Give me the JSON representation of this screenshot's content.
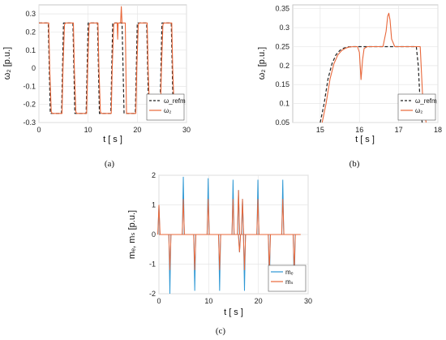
{
  "colors": {
    "ref": "#222222",
    "signal": "#E8673A",
    "me": "#2C97D4",
    "ms": "#E8673A",
    "grid": "#e6e6e6",
    "frame": "#b8b8b8"
  },
  "chart_data": [
    {
      "id": "a",
      "type": "line",
      "caption": "(a)",
      "xlabel": "t [ s ]",
      "ylabel": "ω₂ [p.u.]",
      "xlim": [
        0,
        30
      ],
      "ylim": [
        -0.3,
        0.35
      ],
      "xticks": [
        0,
        10,
        20,
        30
      ],
      "yticks": [
        -0.3,
        -0.2,
        -0.1,
        0,
        0.1,
        0.2,
        0.3
      ],
      "grid": true,
      "legend_position": "bottom-right",
      "series": [
        {
          "name": "ω_refm",
          "style": "dashed",
          "x": [
            0,
            1.9,
            2.3,
            4.6,
            5.0,
            6.9,
            7.3,
            9.6,
            10.0,
            11.9,
            12.3,
            14.6,
            15.0,
            16.9,
            17.3,
            19.6,
            20.0,
            21.9,
            22.3,
            24.6,
            25.0,
            26.9,
            27.3,
            28.0
          ],
          "y": [
            0.25,
            0.25,
            -0.25,
            -0.25,
            0.25,
            0.25,
            -0.25,
            -0.25,
            0.25,
            0.25,
            -0.25,
            -0.25,
            0.25,
            0.25,
            -0.25,
            -0.25,
            0.25,
            0.25,
            -0.25,
            -0.25,
            0.25,
            0.25,
            -0.25,
            -0.25
          ]
        },
        {
          "name": "ω₂",
          "style": "solid",
          "x": [
            0,
            2.0,
            2.2,
            2.5,
            2.7,
            4.7,
            4.9,
            5.2,
            5.4,
            7.0,
            7.2,
            7.5,
            7.7,
            9.7,
            9.9,
            10.2,
            10.4,
            12.0,
            12.2,
            12.5,
            12.7,
            14.7,
            14.9,
            15.2,
            15.4,
            15.9,
            16.0,
            16.1,
            16.3,
            16.6,
            16.75,
            16.9,
            17.05,
            17.25,
            17.55,
            17.8,
            19.7,
            19.9,
            20.2,
            20.4,
            22.0,
            22.2,
            22.5,
            22.7,
            24.7,
            24.9,
            25.2,
            25.4,
            27.0,
            27.2,
            27.5,
            27.7,
            28.0
          ],
          "y": [
            0.25,
            0.25,
            0.0,
            -0.24,
            -0.25,
            -0.25,
            0.0,
            0.24,
            0.25,
            0.25,
            0.0,
            -0.24,
            -0.25,
            -0.25,
            0.0,
            0.24,
            0.25,
            0.25,
            0.0,
            -0.24,
            -0.25,
            -0.25,
            0.0,
            0.24,
            0.25,
            0.25,
            0.16,
            0.25,
            0.25,
            0.25,
            0.34,
            0.25,
            0.25,
            0.25,
            0.25,
            -0.25,
            -0.25,
            0.0,
            0.24,
            0.25,
            0.25,
            0.0,
            -0.24,
            -0.25,
            -0.25,
            0.0,
            0.24,
            0.25,
            0.25,
            0.0,
            -0.24,
            -0.25,
            -0.25
          ]
        }
      ]
    },
    {
      "id": "b",
      "type": "line",
      "caption": "(b)",
      "xlabel": "t [ s ]",
      "ylabel": "ω₂ [p.u.]",
      "xlim": [
        14.3,
        18
      ],
      "ylim": [
        0.05,
        0.36
      ],
      "xticks": [
        15,
        16,
        17,
        18
      ],
      "yticks": [
        0.05,
        0.1,
        0.15,
        0.2,
        0.25,
        0.3,
        0.35
      ],
      "grid": true,
      "legend_position": "bottom-right",
      "series": [
        {
          "name": "ω_refm",
          "style": "dashed",
          "x": [
            15.0,
            15.1,
            15.2,
            15.3,
            15.4,
            15.5,
            15.6,
            15.7,
            15.8,
            16.0,
            17.0,
            17.45,
            17.5,
            17.55,
            17.6
          ],
          "y": [
            0.0,
            0.1,
            0.165,
            0.205,
            0.228,
            0.24,
            0.246,
            0.249,
            0.25,
            0.25,
            0.25,
            0.25,
            0.2,
            0.1,
            0.0
          ]
        },
        {
          "name": "ω₂",
          "style": "solid",
          "x": [
            15.05,
            15.15,
            15.25,
            15.35,
            15.45,
            15.55,
            15.65,
            15.75,
            15.85,
            15.95,
            16.0,
            16.04,
            16.08,
            16.12,
            16.2,
            16.3,
            16.45,
            16.6,
            16.68,
            16.72,
            16.75,
            16.78,
            16.82,
            16.9,
            17.0,
            17.2,
            17.55,
            17.62,
            17.7
          ],
          "y": [
            0.0,
            0.1,
            0.165,
            0.205,
            0.228,
            0.24,
            0.246,
            0.249,
            0.25,
            0.25,
            0.235,
            0.163,
            0.215,
            0.245,
            0.25,
            0.25,
            0.25,
            0.25,
            0.29,
            0.33,
            0.338,
            0.32,
            0.27,
            0.25,
            0.25,
            0.25,
            0.25,
            0.1,
            0.0
          ]
        }
      ]
    },
    {
      "id": "c",
      "type": "line",
      "caption": "(c)",
      "xlabel": "t [ s ]",
      "ylabel": "mₑ, mₛ [p.u.]",
      "xlim": [
        0,
        30
      ],
      "ylim": [
        -2,
        2
      ],
      "xticks": [
        0,
        10,
        20,
        30
      ],
      "yticks": [
        -2,
        -1,
        0,
        1,
        2
      ],
      "grid": true,
      "legend_position": "bottom-right",
      "spikes": [
        {
          "t": 0.0,
          "me": 1.0,
          "ms": 1.0
        },
        {
          "t": 2.2,
          "me": -2.0,
          "ms": -1.2
        },
        {
          "t": 4.9,
          "me": 1.95,
          "ms": 1.2
        },
        {
          "t": 7.2,
          "me": -1.9,
          "ms": -1.2
        },
        {
          "t": 9.9,
          "me": 1.9,
          "ms": 1.2
        },
        {
          "t": 12.2,
          "me": -1.9,
          "ms": -1.2
        },
        {
          "t": 14.9,
          "me": 1.85,
          "ms": 1.2
        },
        {
          "t": 16.0,
          "me": 1.5,
          "ms": 1.5
        },
        {
          "t": 16.2,
          "me": -0.6,
          "ms": -0.6
        },
        {
          "t": 16.8,
          "me": 1.2,
          "ms": 1.2
        },
        {
          "t": 17.2,
          "me": -1.9,
          "ms": -1.2
        },
        {
          "t": 19.9,
          "me": 1.85,
          "ms": 1.2
        },
        {
          "t": 22.2,
          "me": -1.9,
          "ms": -1.2
        },
        {
          "t": 24.9,
          "me": 1.85,
          "ms": 1.2
        },
        {
          "t": 27.2,
          "me": -1.9,
          "ms": -1.2
        }
      ],
      "series": [
        {
          "name": "mₑ",
          "style": "solid"
        },
        {
          "name": "mₛ",
          "style": "solid"
        }
      ]
    }
  ]
}
